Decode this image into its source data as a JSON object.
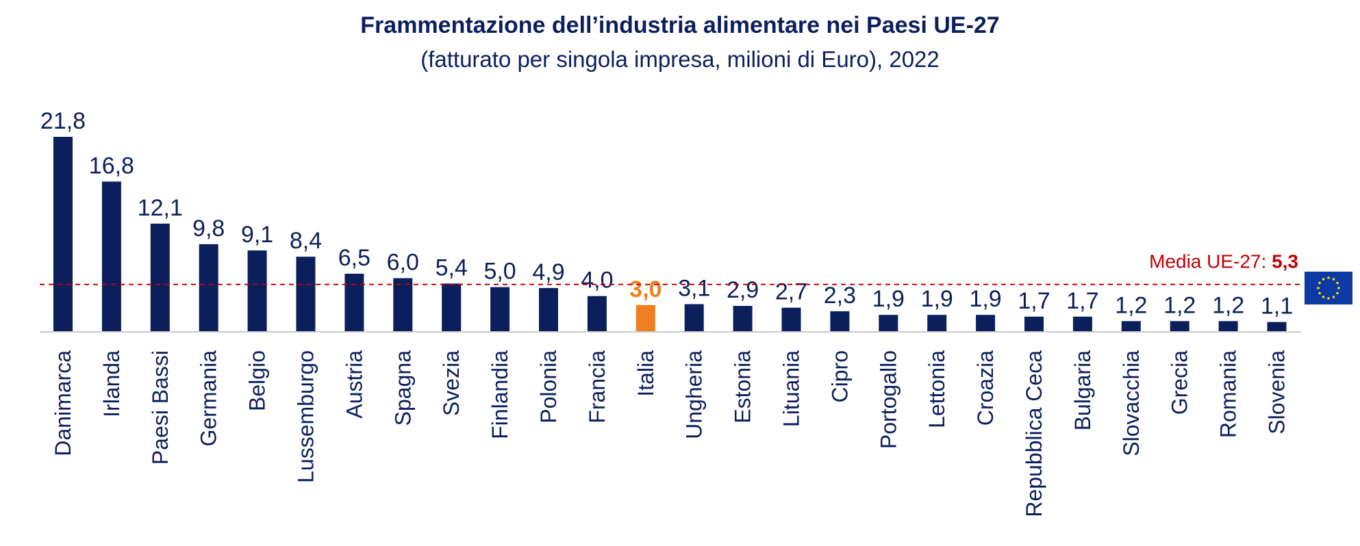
{
  "chart_data": {
    "type": "bar",
    "title": "Frammentazione dell’industria alimentare nei Paesi UE-27",
    "subtitle": "(fatturato per singola impresa, milioni di Euro), 2022",
    "categories": [
      "Danimarca",
      "Irlanda",
      "Paesi Bassi",
      "Germania",
      "Belgio",
      "Lussemburgo",
      "Austria",
      "Spagna",
      "Svezia",
      "Finlandia",
      "Polonia",
      "Francia",
      "Italia",
      "Ungheria",
      "Estonia",
      "Lituania",
      "Cipro",
      "Portogallo",
      "Lettonia",
      "Croazia",
      "Repubblica Ceca",
      "Bulgaria",
      "Slovacchia",
      "Grecia",
      "Romania",
      "Slovenia"
    ],
    "values": [
      21.8,
      16.8,
      12.1,
      9.8,
      9.1,
      8.4,
      6.5,
      6.0,
      5.4,
      5.0,
      4.9,
      4.0,
      3.0,
      3.1,
      2.9,
      2.7,
      2.3,
      1.9,
      1.9,
      1.9,
      1.7,
      1.7,
      1.2,
      1.2,
      1.2,
      1.1
    ],
    "value_labels": [
      "21,8",
      "16,8",
      "12,1",
      "9,8",
      "9,1",
      "8,4",
      "6,5",
      "6,0",
      "5,4",
      "5,0",
      "4,9",
      "4,0",
      "3,0",
      "3,1",
      "2,9",
      "2,7",
      "2,3",
      "1,9",
      "1,9",
      "1,9",
      "1,7",
      "1,7",
      "1,2",
      "1,2",
      "1,2",
      "1,1"
    ],
    "highlight_category": "Italia",
    "reference_line": {
      "label": "Media UE-27: ",
      "value": 5.3,
      "value_label": "5,3"
    },
    "ylim": [
      0,
      22
    ],
    "grid": false,
    "colors": {
      "bar": "#0b1f5c",
      "highlight": "#f07f22",
      "reference": "#c00000",
      "flag": "#0b3aa5",
      "flag_stars": "#ffdd00"
    },
    "icons": {
      "flag": "eu-flag-icon"
    }
  }
}
